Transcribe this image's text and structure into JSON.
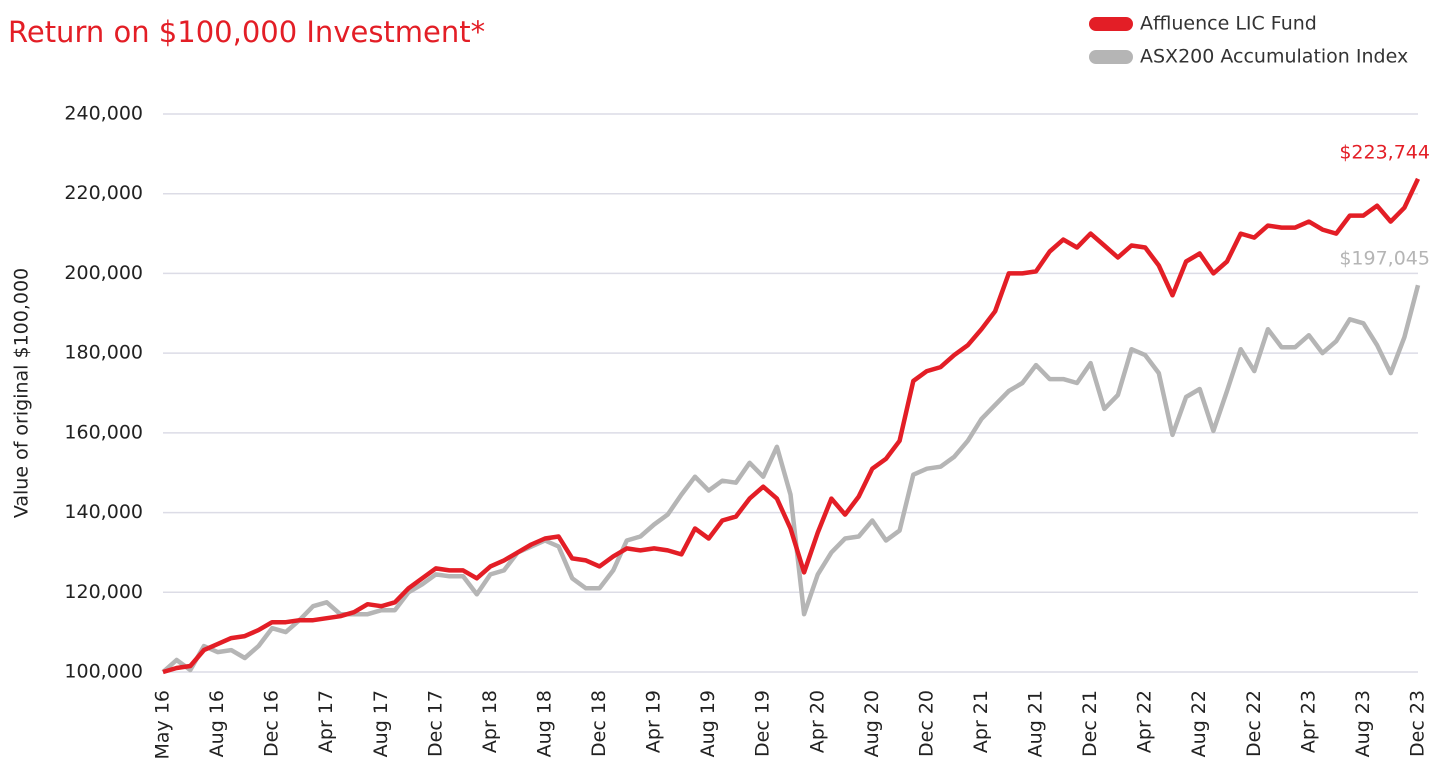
{
  "chart_data": {
    "type": "line",
    "title": "Return on $100,000 Investment*",
    "y_label": "Value of original $100,000",
    "categories": [
      "May 16",
      null,
      null,
      null,
      "Aug 16",
      null,
      null,
      null,
      "Dec 16",
      null,
      null,
      null,
      "Apr 17",
      null,
      null,
      null,
      "Aug 17",
      null,
      null,
      null,
      "Dec 17",
      null,
      null,
      null,
      "Apr 18",
      null,
      null,
      null,
      "Aug 18",
      null,
      null,
      null,
      "Dec 18",
      null,
      null,
      null,
      "Apr 19",
      null,
      null,
      null,
      "Aug 19",
      null,
      null,
      null,
      "Dec 19",
      null,
      null,
      null,
      "Apr 20",
      null,
      null,
      null,
      "Aug 20",
      null,
      null,
      null,
      "Dec 20",
      null,
      null,
      null,
      "Apr 21",
      null,
      null,
      null,
      "Aug 21",
      null,
      null,
      null,
      "Dec 21",
      null,
      null,
      null,
      "Apr 22",
      null,
      null,
      null,
      "Aug 22",
      null,
      null,
      null,
      "Dec 22",
      null,
      null,
      null,
      "Apr 23",
      null,
      null,
      null,
      "Aug 23",
      null,
      null,
      null,
      "Dec 23"
    ],
    "series": [
      {
        "name": "Affluence LIC Fund",
        "color": "#e31e26",
        "values": [
          100000,
          101000,
          101500,
          105500,
          107000,
          108500,
          109000,
          110500,
          112500,
          112500,
          113000,
          113000,
          113500,
          114000,
          115000,
          117000,
          116500,
          117500,
          121000,
          123500,
          126000,
          125500,
          125500,
          123500,
          126500,
          128000,
          130000,
          132000,
          133500,
          134000,
          128500,
          128000,
          126500,
          129000,
          131000,
          130500,
          131000,
          130500,
          129500,
          136000,
          133500,
          138000,
          139000,
          143500,
          146500,
          143500,
          136000,
          125000,
          135000,
          143500,
          139500,
          144000,
          151000,
          153500,
          158000,
          173000,
          175500,
          176500,
          179500,
          182000,
          186000,
          190500,
          200000,
          200000,
          200500,
          205500,
          208500,
          206500,
          210000,
          207000,
          204000,
          207000,
          206500,
          202000,
          194500,
          203000,
          205000,
          200000,
          203000,
          210000,
          209000,
          212000,
          211500,
          211500,
          213000,
          211000,
          210000,
          214500,
          214500,
          217000,
          213000,
          216500,
          223744
        ],
        "value_labels": [
          null,
          null,
          null,
          null,
          null,
          null,
          null,
          null,
          null,
          null,
          null,
          null,
          null,
          null,
          null,
          null,
          null,
          null,
          null,
          null,
          null,
          null,
          null,
          null,
          null,
          null,
          null,
          null,
          null,
          null,
          null,
          null,
          null,
          null,
          null,
          null,
          null,
          null,
          null,
          null,
          null,
          null,
          null,
          null,
          null,
          null,
          null,
          null,
          null,
          null,
          null,
          null,
          null,
          null,
          null,
          null,
          null,
          null,
          null,
          null,
          null,
          null,
          null,
          null,
          null,
          null,
          null,
          null,
          null,
          null,
          null,
          null,
          null,
          null,
          null,
          null,
          null,
          null,
          null,
          null,
          null,
          null,
          null,
          null,
          null,
          null,
          null,
          null,
          null,
          null,
          null,
          null,
          "$223,744"
        ]
      },
      {
        "name": "ASX200 Accumulation Index",
        "color": "#b5b5b5",
        "values": [
          100000,
          103000,
          100500,
          106500,
          105000,
          105500,
          103500,
          106500,
          111000,
          110000,
          113000,
          116500,
          117500,
          114500,
          114500,
          114500,
          115500,
          115500,
          120000,
          122000,
          124500,
          124000,
          124000,
          119500,
          124500,
          125500,
          130000,
          131500,
          133000,
          131500,
          123500,
          121000,
          121000,
          125500,
          133000,
          134000,
          137000,
          139500,
          144500,
          149000,
          145500,
          148000,
          147500,
          152500,
          149000,
          156500,
          144500,
          114500,
          124500,
          130000,
          133500,
          134000,
          138000,
          133000,
          135500,
          149500,
          151000,
          151500,
          154000,
          158000,
          163500,
          167000,
          170500,
          172500,
          177000,
          173500,
          173500,
          172500,
          177500,
          166000,
          169500,
          181000,
          179500,
          175000,
          159500,
          169000,
          171000,
          160500,
          170500,
          181000,
          175500,
          186000,
          181500,
          181500,
          184500,
          180000,
          183000,
          188500,
          187500,
          182000,
          175000,
          184000,
          197045
        ],
        "value_labels": [
          null,
          null,
          null,
          null,
          null,
          null,
          null,
          null,
          null,
          null,
          null,
          null,
          null,
          null,
          null,
          null,
          null,
          null,
          null,
          null,
          null,
          null,
          null,
          null,
          null,
          null,
          null,
          null,
          null,
          null,
          null,
          null,
          null,
          null,
          null,
          null,
          null,
          null,
          null,
          null,
          null,
          null,
          null,
          null,
          null,
          null,
          null,
          null,
          null,
          null,
          null,
          null,
          null,
          null,
          null,
          null,
          null,
          null,
          null,
          null,
          null,
          null,
          null,
          null,
          null,
          null,
          null,
          null,
          null,
          null,
          null,
          null,
          null,
          null,
          null,
          null,
          null,
          null,
          null,
          null,
          null,
          null,
          null,
          null,
          null,
          null,
          null,
          null,
          null,
          null,
          null,
          null,
          "$197,045"
        ]
      }
    ],
    "ylim": [
      100000,
      240000
    ],
    "yticks": [
      {
        "value": 100000,
        "label": "100,000"
      },
      {
        "value": 120000,
        "label": "120,000"
      },
      {
        "value": 140000,
        "label": "140,000"
      },
      {
        "value": 160000,
        "label": "160,000"
      },
      {
        "value": 180000,
        "label": "180,000"
      },
      {
        "value": 200000,
        "label": "200,000"
      },
      {
        "value": 220000,
        "label": "220,000"
      },
      {
        "value": 240000,
        "label": "240,000"
      }
    ],
    "grid": true,
    "legend": "top-right"
  }
}
